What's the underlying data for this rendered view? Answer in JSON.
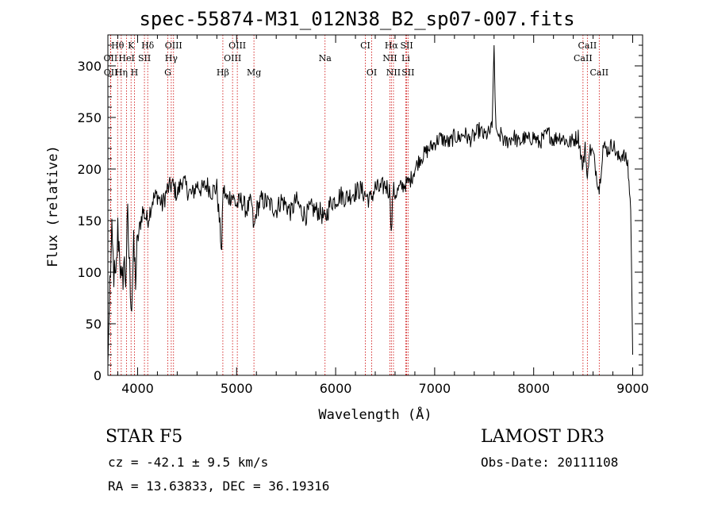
{
  "chart_data": {
    "type": "line",
    "title": "spec-55874-M31_012N38_B2_sp07-007.fits",
    "xlabel": "Wavelength (Å)",
    "ylabel": "Flux (relative)",
    "xlim": [
      3700,
      9100
    ],
    "ylim": [
      0,
      330
    ],
    "xticks": [
      4000,
      5000,
      6000,
      7000,
      8000,
      9000
    ],
    "yticks": [
      0,
      50,
      100,
      150,
      200,
      250,
      300
    ],
    "grid": false,
    "series": [
      {
        "name": "spectrum",
        "x": [
          3700,
          3720,
          3740,
          3760,
          3780,
          3800,
          3820,
          3840,
          3860,
          3880,
          3900,
          3920,
          3940,
          3960,
          3980,
          4000,
          4050,
          4100,
          4150,
          4200,
          4250,
          4300,
          4350,
          4400,
          4450,
          4500,
          4550,
          4600,
          4650,
          4700,
          4750,
          4800,
          4850,
          4860,
          4870,
          4900,
          4950,
          5000,
          5050,
          5100,
          5150,
          5175,
          5200,
          5250,
          5300,
          5350,
          5400,
          5450,
          5500,
          5550,
          5600,
          5650,
          5700,
          5750,
          5800,
          5850,
          5890,
          5950,
          6000,
          6050,
          6100,
          6150,
          6200,
          6250,
          6300,
          6350,
          6400,
          6450,
          6500,
          6550,
          6562,
          6580,
          6600,
          6650,
          6700,
          6750,
          6800,
          6850,
          6900,
          6950,
          7000,
          7050,
          7100,
          7150,
          7200,
          7250,
          7300,
          7350,
          7400,
          7450,
          7500,
          7550,
          7580,
          7600,
          7610,
          7620,
          7650,
          7680,
          7700,
          7750,
          7800,
          7850,
          7900,
          7950,
          8000,
          8050,
          8100,
          8150,
          8200,
          8250,
          8300,
          8350,
          8400,
          8450,
          8498,
          8520,
          8542,
          8560,
          8600,
          8662,
          8700,
          8750,
          8800,
          8850,
          8900,
          8950,
          8980,
          9000
        ],
        "values": [
          10,
          90,
          130,
          100,
          85,
          140,
          120,
          80,
          110,
          95,
          150,
          100,
          70,
          120,
          95,
          130,
          160,
          150,
          170,
          175,
          165,
          180,
          185,
          175,
          190,
          180,
          175,
          185,
          180,
          185,
          178,
          182,
          120,
          175,
          180,
          170,
          175,
          165,
          170,
          160,
          168,
          140,
          160,
          170,
          168,
          165,
          160,
          170,
          165,
          158,
          170,
          160,
          155,
          162,
          160,
          158,
          150,
          168,
          170,
          175,
          172,
          175,
          178,
          180,
          175,
          170,
          182,
          180,
          185,
          178,
          135,
          180,
          175,
          182,
          185,
          188,
          200,
          210,
          215,
          220,
          225,
          230,
          228,
          225,
          232,
          230,
          235,
          228,
          232,
          238,
          232,
          235,
          240,
          320,
          270,
          240,
          230,
          235,
          225,
          228,
          232,
          225,
          230,
          228,
          232,
          225,
          230,
          235,
          228,
          232,
          230,
          225,
          228,
          232,
          200,
          225,
          185,
          220,
          215,
          180,
          222,
          218,
          225,
          210,
          215,
          205,
          160,
          20
        ]
      }
    ],
    "lines": [
      {
        "label": "Hθ",
        "x": 3798,
        "row": 1
      },
      {
        "label": "K",
        "x": 3934,
        "row": 1
      },
      {
        "label": "Hδ",
        "x": 4102,
        "row": 1
      },
      {
        "label": "OIII",
        "x": 4363,
        "row": 1
      },
      {
        "label": "OIII",
        "x": 5007,
        "row": 1
      },
      {
        "label": "CI",
        "x": 6300,
        "row": 1
      },
      {
        "label": "Hα",
        "x": 6563,
        "row": 1
      },
      {
        "label": "SII",
        "x": 6717,
        "row": 1
      },
      {
        "label": "CaII",
        "x": 8542,
        "row": 1
      },
      {
        "label": "OII",
        "x": 3727,
        "row": 2
      },
      {
        "label": "HeI",
        "x": 3889,
        "row": 2
      },
      {
        "label": "SII",
        "x": 4069,
        "row": 2
      },
      {
        "label": "Hγ",
        "x": 4340,
        "row": 2
      },
      {
        "label": "OIII",
        "x": 4959,
        "row": 2
      },
      {
        "label": "Na",
        "x": 5893,
        "row": 2
      },
      {
        "label": "NII",
        "x": 6548,
        "row": 2
      },
      {
        "label": "Li",
        "x": 6708,
        "row": 2
      },
      {
        "label": "CaII",
        "x": 8498,
        "row": 2
      },
      {
        "label": "OII",
        "x": 3729,
        "row": 3
      },
      {
        "label": "Hη",
        "x": 3835,
        "row": 3
      },
      {
        "label": "H",
        "x": 3968,
        "row": 3
      },
      {
        "label": "G",
        "x": 4305,
        "row": 3
      },
      {
        "label": "Hβ",
        "x": 4861,
        "row": 3
      },
      {
        "label": "Mg",
        "x": 5175,
        "row": 3
      },
      {
        "label": "OI",
        "x": 6364,
        "row": 3
      },
      {
        "label": "NII",
        "x": 6584,
        "row": 3
      },
      {
        "label": "SII",
        "x": 6731,
        "row": 3
      },
      {
        "label": "CaII",
        "x": 8662,
        "row": 3
      }
    ]
  },
  "footer": {
    "object_class": "STAR    F5",
    "survey": "LAMOST DR3",
    "cz": "cz = -42.1 ± 9.5 km/s",
    "obs_date": "Obs-Date: 20111108",
    "radec": "RA =  13.63833, DEC =  36.19316"
  },
  "colors": {
    "axis": "#000000",
    "spectrum": "#000000",
    "line_markers": "#cc0000"
  }
}
